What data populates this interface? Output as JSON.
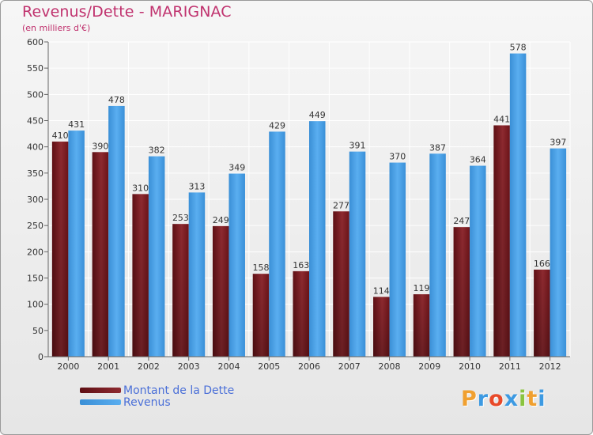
{
  "header": {
    "title": "Revenus/Dette - MARIGNAC",
    "subtitle": "(en milliers d'€)"
  },
  "chart_data": {
    "type": "bar",
    "title": "Revenus/Dette - MARIGNAC",
    "ylabel": "(en milliers d'€)",
    "xlabel": "",
    "categories": [
      "2000",
      "2001",
      "2002",
      "2003",
      "2004",
      "2005",
      "2006",
      "2007",
      "2008",
      "2009",
      "2010",
      "2011",
      "2012"
    ],
    "series": [
      {
        "name": "Montant de la Dette",
        "color": "#7a1a1f",
        "values": [
          410,
          390,
          310,
          253,
          249,
          158,
          163,
          277,
          114,
          119,
          247,
          441,
          166
        ]
      },
      {
        "name": "Revenus",
        "color": "#3d9ae2",
        "values": [
          431,
          478,
          382,
          313,
          349,
          429,
          449,
          391,
          370,
          387,
          364,
          578,
          397
        ]
      }
    ],
    "ylim": [
      0,
      600
    ],
    "yticks": [
      0,
      50,
      100,
      150,
      200,
      250,
      300,
      350,
      400,
      450,
      500,
      550,
      600
    ],
    "grid": true,
    "legend_position": "bottom-left"
  },
  "legend": {
    "items": [
      {
        "label": "Montant de la Dette",
        "color": "#7a1a1f"
      },
      {
        "label": "Revenus",
        "color": "#3d9ae2"
      }
    ]
  },
  "logo": {
    "letters": [
      "P",
      "r",
      "o",
      "x",
      "i",
      "t",
      "i"
    ],
    "colors": [
      "#f0a030",
      "#3d9ae2",
      "#e84a2a",
      "#3d9ae2",
      "#8ac43f",
      "#f0a030",
      "#3d9ae2"
    ]
  }
}
